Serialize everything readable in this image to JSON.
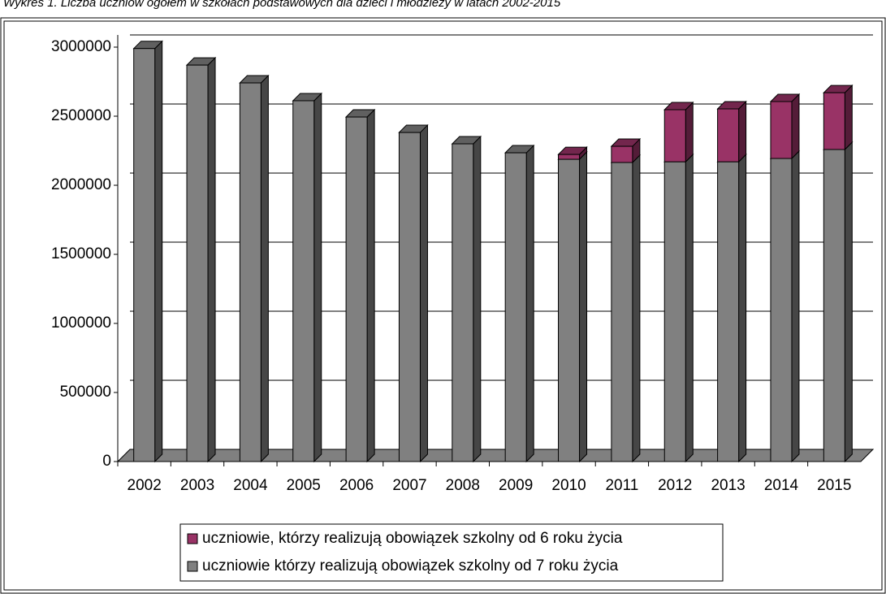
{
  "chart_data": {
    "type": "bar3d_stacked",
    "title": "Wykres 1. Liczba uczniów ogółem w szkołach podstawowych dla dzieci i młodzieży w latach 2002-2015",
    "categories": [
      "2002",
      "2003",
      "2004",
      "2005",
      "2006",
      "2007",
      "2008",
      "2009",
      "2010",
      "2011",
      "2012",
      "2013",
      "2014",
      "2015"
    ],
    "series": [
      {
        "name": "uczniowie, którzy realizują obowiązek szkolny od 6 roku życia",
        "color": "#993366",
        "values": [
          0,
          0,
          0,
          0,
          0,
          0,
          0,
          0,
          35000,
          117000,
          377000,
          383000,
          412000,
          411000
        ]
      },
      {
        "name": "uczniowie którzy realizują obowiązek szkolny od 7 roku życia",
        "color": "#808080",
        "values": [
          2990000,
          2870000,
          2741000,
          2612000,
          2494000,
          2382000,
          2300000,
          2235000,
          2188000,
          2165000,
          2170000,
          2170000,
          2194000,
          2259000
        ]
      }
    ],
    "ylim": [
      0,
      3000000
    ],
    "yticks": [
      0,
      500000,
      1000000,
      1500000,
      2000000,
      2500000,
      3000000
    ],
    "grid": true
  }
}
